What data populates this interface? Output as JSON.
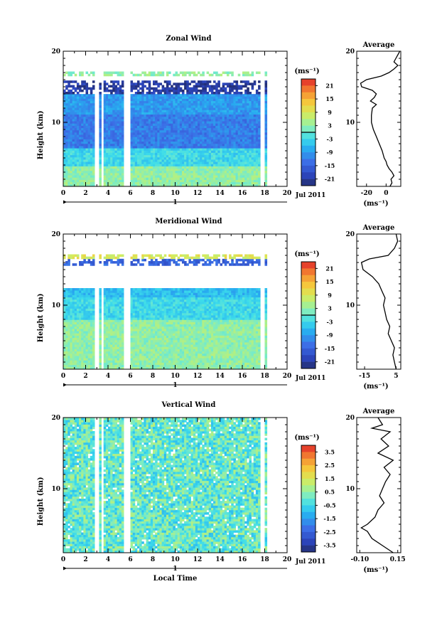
{
  "chart_data": [
    {
      "type": "heatmap",
      "title": "Zonal Wind",
      "ylabel": "Height (km)",
      "xlabel": "",
      "x_ticks": [
        "0",
        "2",
        "4",
        "6",
        "8",
        "10",
        "12",
        "14",
        "16",
        "18",
        "20"
      ],
      "y_ticks": [
        "10",
        "20"
      ],
      "xlim": [
        0,
        20
      ],
      "ylim": [
        1,
        20
      ],
      "date_day": "1",
      "date_month": "Jul 2011",
      "colorbar": {
        "unit": "(ms⁻¹)",
        "ticks": [
          "21",
          "15",
          "9",
          "3",
          "-3",
          "-9",
          "-15",
          "-21"
        ],
        "range": [
          -24,
          24
        ],
        "zero_line": 0
      },
      "data_gaps_hours": [
        [
          2.8,
          3.1
        ],
        [
          3.5,
          3.6
        ],
        [
          5.5,
          6.0
        ],
        [
          17.6,
          18.0
        ]
      ],
      "field_regimes": [
        {
          "height_km": [
            1,
            4
          ],
          "value": 3
        },
        {
          "height_km": [
            4,
            6.5
          ],
          "value": -3
        },
        {
          "height_km": [
            6.5,
            11
          ],
          "value": -12
        },
        {
          "height_km": [
            11,
            14
          ],
          "value": -9
        },
        {
          "height_km": [
            14,
            16
          ],
          "value": -21
        },
        {
          "height_km": [
            16.5,
            17
          ],
          "value": 3
        }
      ],
      "average_profile": {
        "title": "Average",
        "xlabel": "(ms⁻¹)",
        "x_ticks": [
          "-20",
          "0"
        ],
        "xlim": [
          -30,
          15
        ],
        "y_ticks": [
          "10",
          "20"
        ],
        "points": [
          [
            4,
            1
          ],
          [
            6,
            1.5
          ],
          [
            5,
            2
          ],
          [
            8,
            2.5
          ],
          [
            6,
            3
          ],
          [
            3,
            3.5
          ],
          [
            1,
            4
          ],
          [
            0,
            4.5
          ],
          [
            -2,
            5
          ],
          [
            -4,
            6
          ],
          [
            -7,
            7
          ],
          [
            -10,
            8
          ],
          [
            -13,
            9
          ],
          [
            -15,
            10
          ],
          [
            -15,
            11
          ],
          [
            -14,
            12
          ],
          [
            -10,
            12.5
          ],
          [
            -16,
            13
          ],
          [
            -12,
            13.5
          ],
          [
            -10,
            14
          ],
          [
            -14,
            14.5
          ],
          [
            -25,
            15
          ],
          [
            -26,
            15.5
          ],
          [
            -20,
            16
          ],
          [
            -5,
            16.5
          ],
          [
            3,
            17
          ],
          [
            8,
            17.5
          ],
          [
            12,
            18
          ],
          [
            8,
            18.5
          ],
          [
            10,
            19
          ],
          [
            12,
            19.5
          ],
          [
            14,
            20
          ]
        ]
      }
    },
    {
      "type": "heatmap",
      "title": "Meridional Wind",
      "ylabel": "Height (km)",
      "xlabel": "",
      "x_ticks": [
        "0",
        "2",
        "4",
        "6",
        "8",
        "10",
        "12",
        "14",
        "16",
        "18",
        "20"
      ],
      "y_ticks": [
        "10",
        "20"
      ],
      "xlim": [
        0,
        20
      ],
      "ylim": [
        1,
        20
      ],
      "date_day": "1",
      "date_month": "Jul 2011",
      "colorbar": {
        "unit": "(ms⁻¹)",
        "ticks": [
          "21",
          "15",
          "9",
          "3",
          "-3",
          "-9",
          "-15",
          "-21"
        ],
        "range": [
          -24,
          24
        ],
        "zero_line": 0
      },
      "data_gaps_hours": [
        [
          2.8,
          3.1
        ],
        [
          3.5,
          3.6
        ],
        [
          5.5,
          6.0
        ],
        [
          17.6,
          18.0
        ]
      ],
      "field_regimes": [
        {
          "height_km": [
            1,
            5
          ],
          "value": 3
        },
        {
          "height_km": [
            5,
            8
          ],
          "value": 3
        },
        {
          "height_km": [
            8,
            11
          ],
          "value": -3
        },
        {
          "height_km": [
            11,
            12.5
          ],
          "value": -6
        },
        {
          "height_km": [
            15.5,
            16.5
          ],
          "value": -15
        },
        {
          "height_km": [
            16.5,
            17
          ],
          "value": 9
        }
      ],
      "average_profile": {
        "title": "Average",
        "xlabel": "(ms⁻¹)",
        "x_ticks": [
          "-15",
          "5"
        ],
        "xlim": [
          -20,
          8
        ],
        "y_ticks": [
          "10",
          "20"
        ],
        "points": [
          [
            5,
            1
          ],
          [
            4,
            2
          ],
          [
            3,
            3
          ],
          [
            4,
            4
          ],
          [
            2,
            5
          ],
          [
            0,
            6
          ],
          [
            1,
            7
          ],
          [
            -1,
            8
          ],
          [
            -2,
            9
          ],
          [
            -3,
            10
          ],
          [
            -2,
            11
          ],
          [
            -4,
            12
          ],
          [
            -6,
            13
          ],
          [
            -10,
            14
          ],
          [
            -16,
            15
          ],
          [
            -17,
            16
          ],
          [
            -12,
            16.5
          ],
          [
            0,
            17
          ],
          [
            4,
            18
          ],
          [
            6,
            19
          ],
          [
            5,
            20
          ]
        ]
      }
    },
    {
      "type": "heatmap",
      "title": "Vertical Wind",
      "ylabel": "Height (km)",
      "xlabel": "Local Time",
      "x_ticks": [
        "0",
        "2",
        "4",
        "6",
        "8",
        "10",
        "12",
        "14",
        "16",
        "18",
        "20"
      ],
      "y_ticks": [
        "10",
        "20"
      ],
      "xlim": [
        0,
        20
      ],
      "ylim": [
        1,
        20
      ],
      "date_day": "1",
      "date_month": "Jul 2011",
      "colorbar": {
        "unit": "(ms⁻¹)",
        "ticks": [
          "3.5",
          "2.5",
          "1.5",
          "0.5",
          "-0.5",
          "-1.5",
          "-2.5",
          "-3.5"
        ],
        "range": [
          -4,
          4
        ]
      },
      "data_gaps_hours": [
        [
          2.8,
          3.1
        ],
        [
          3.5,
          3.6
        ],
        [
          5.5,
          6.0
        ],
        [
          17.6,
          18.0
        ]
      ],
      "field_regimes": [
        {
          "height_km": [
            1,
            20
          ],
          "value": 0
        }
      ],
      "average_profile": {
        "title": "Average",
        "xlabel": "(ms⁻¹)",
        "x_ticks": [
          "-0.10",
          "0.15"
        ],
        "xlim": [
          -0.12,
          0.17
        ],
        "y_ticks": [
          "10",
          "20"
        ],
        "points": [
          [
            0.12,
            1
          ],
          [
            0.05,
            2
          ],
          [
            -0.02,
            3
          ],
          [
            -0.05,
            4
          ],
          [
            -0.09,
            4.5
          ],
          [
            -0.05,
            5
          ],
          [
            0.0,
            6
          ],
          [
            0.02,
            7
          ],
          [
            0.06,
            8
          ],
          [
            0.03,
            9
          ],
          [
            0.05,
            10
          ],
          [
            0.07,
            11
          ],
          [
            0.1,
            12
          ],
          [
            0.06,
            13
          ],
          [
            0.12,
            14
          ],
          [
            0.02,
            15
          ],
          [
            0.09,
            16
          ],
          [
            0.04,
            17
          ],
          [
            0.1,
            18
          ],
          [
            -0.02,
            18.5
          ],
          [
            0.05,
            19
          ],
          [
            0.02,
            20
          ]
        ]
      }
    }
  ]
}
